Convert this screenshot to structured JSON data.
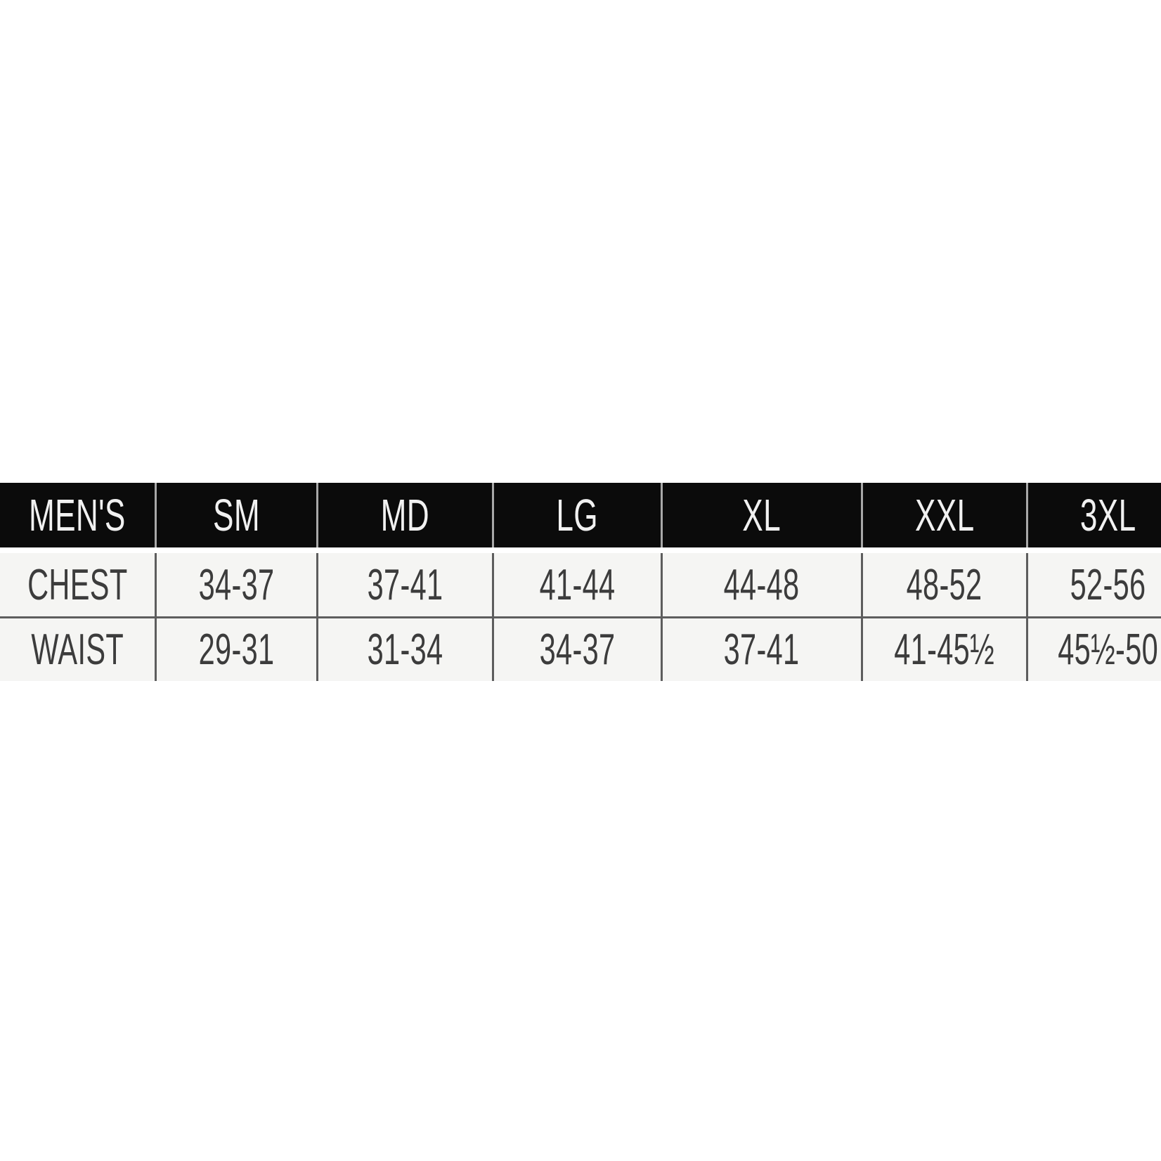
{
  "page": {
    "background_color": "#ffffff"
  },
  "table": {
    "colors": {
      "header_background": "#0b0b0b",
      "header_text": "#f1f1f1",
      "header_divider": "#a8a8a8",
      "body_background": "#f5f5f3",
      "body_text": "#3c3c3c",
      "body_border": "#5d5d5d"
    },
    "header": {
      "cells": [
        "MEN'S",
        "SM",
        "MD",
        "LG",
        "XL",
        "XXL",
        "3XL"
      ]
    },
    "rows": [
      {
        "name": "chest",
        "cells": [
          "CHEST",
          "34-37",
          "37-41",
          "41-44",
          "44-48",
          "48-52",
          "52-56"
        ]
      },
      {
        "name": "waist",
        "cells": [
          "WAIST",
          "29-31",
          "31-34",
          "34-37",
          "37-41",
          "41-45½",
          "45½-50"
        ]
      }
    ]
  },
  "chart_data": {
    "type": "table",
    "title": "MEN'S",
    "columns": [
      "MEN'S",
      "SM",
      "MD",
      "LG",
      "XL",
      "XXL",
      "3XL"
    ],
    "rows": [
      [
        "CHEST",
        "34-37",
        "37-41",
        "41-44",
        "44-48",
        "48-52",
        "52-56"
      ],
      [
        "WAIST",
        "29-31",
        "31-34",
        "34-37",
        "37-41",
        "41-45½",
        "45½-50"
      ]
    ],
    "notes": "Men's apparel size chart; measurement ranges in inches; table cropped at left and right image edges; no outer border; black header row with white text; light gray body cells with dark gray gridlines"
  }
}
